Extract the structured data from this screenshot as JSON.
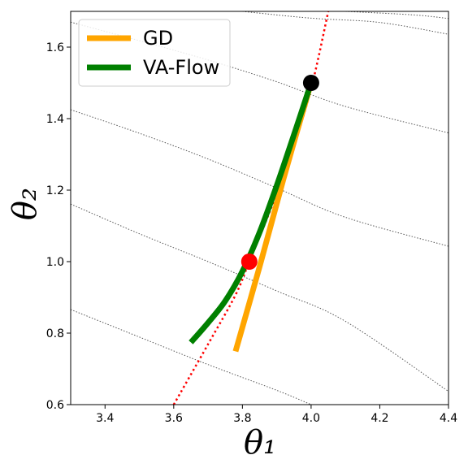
{
  "chart_data": {
    "type": "line",
    "xlabel": "θ₁",
    "ylabel": "θ₂",
    "xlim": [
      3.3,
      4.4
    ],
    "ylim": [
      0.6,
      1.7
    ],
    "xticks": [
      "3.4",
      "3.6",
      "3.8",
      "4.0",
      "4.2",
      "4.4"
    ],
    "yticks": [
      "0.6",
      "0.8",
      "1.0",
      "1.2",
      "1.4",
      "1.6"
    ],
    "legend_position": "top-left",
    "contours": [
      [
        [
          3.3,
          0.866
        ],
        [
          3.5,
          0.789
        ],
        [
          3.7,
          0.712
        ],
        [
          3.9,
          0.64
        ],
        [
          4.0,
          0.6
        ]
      ],
      [
        [
          3.3,
          1.161
        ],
        [
          3.5,
          1.078
        ],
        [
          3.7,
          1.0
        ],
        [
          3.9,
          0.918
        ],
        [
          4.1,
          0.833
        ],
        [
          4.4,
          0.637
        ]
      ],
      [
        [
          3.3,
          1.425
        ],
        [
          3.5,
          1.359
        ],
        [
          3.7,
          1.287
        ],
        [
          3.9,
          1.206
        ],
        [
          4.1,
          1.124
        ],
        [
          4.4,
          1.043
        ]
      ],
      [
        [
          3.3,
          1.67
        ],
        [
          3.5,
          1.618
        ],
        [
          3.7,
          1.564
        ],
        [
          3.9,
          1.503
        ],
        [
          4.1,
          1.434
        ],
        [
          4.4,
          1.36
        ]
      ],
      [
        [
          3.8,
          1.7
        ],
        [
          4.0,
          1.681
        ],
        [
          4.2,
          1.669
        ],
        [
          4.4,
          1.636
        ]
      ],
      [
        [
          4.1,
          1.7
        ],
        [
          4.3,
          1.69
        ],
        [
          4.4,
          1.68
        ]
      ]
    ],
    "dotted_curve": {
      "color": "#ff0000",
      "points": [
        [
          3.6,
          0.6
        ],
        [
          3.7,
          0.769
        ],
        [
          3.78,
          0.907
        ],
        [
          3.82,
          1.0
        ],
        [
          3.88,
          1.141
        ],
        [
          3.94,
          1.295
        ],
        [
          4.0,
          1.484
        ],
        [
          4.05,
          1.7
        ]
      ]
    },
    "series": [
      {
        "name": "GD",
        "color": "#ffa500",
        "points": [
          [
            3.78,
            0.749
          ],
          [
            3.85,
            0.986
          ],
          [
            3.92,
            1.233
          ],
          [
            4.0,
            1.5
          ]
        ]
      },
      {
        "name": "VA-Flow",
        "color": "#008000",
        "points": [
          [
            3.65,
            0.774
          ],
          [
            3.7,
            0.829
          ],
          [
            3.75,
            0.89
          ],
          [
            3.8,
            0.973
          ],
          [
            3.85,
            1.082
          ],
          [
            3.9,
            1.213
          ],
          [
            3.95,
            1.355
          ],
          [
            4.0,
            1.5
          ]
        ]
      }
    ],
    "markers": [
      {
        "x": 4.0,
        "y": 1.5,
        "color": "#000000"
      },
      {
        "x": 3.82,
        "y": 1.0,
        "color": "#ff0000"
      }
    ],
    "contour_color": "#555555"
  }
}
